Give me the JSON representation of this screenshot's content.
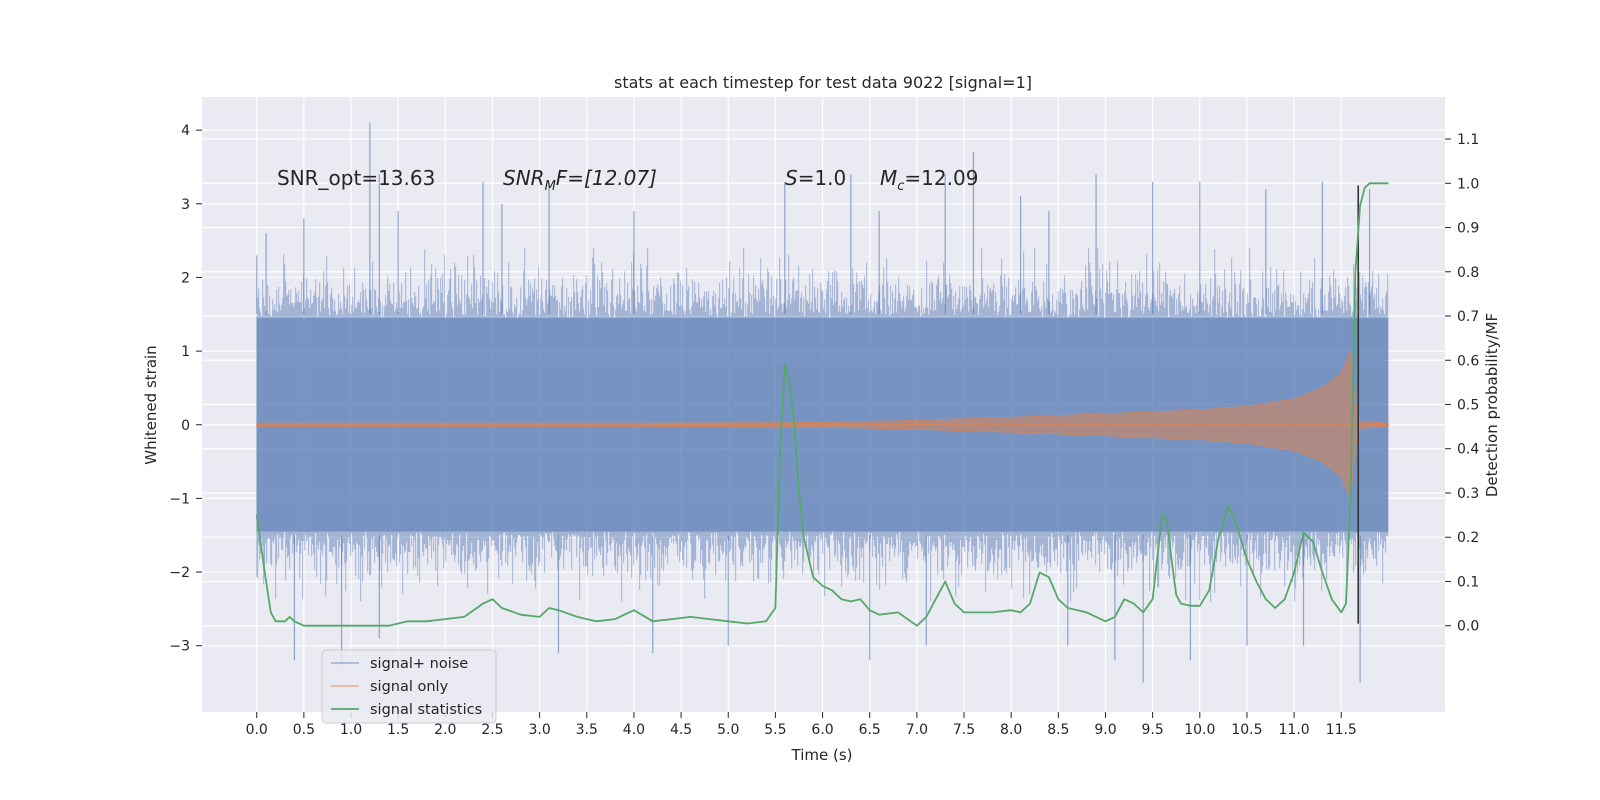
{
  "chart_data": {
    "type": "line",
    "title": "stats at each timestep for test data 9022 [signal=1]",
    "xlabel": "Time (s)",
    "ylabel_left": "Whitened strain",
    "ylabel_right": "Detection probability/MF",
    "xlim": [
      -0.58,
      12.6
    ],
    "ylim_left": [
      -3.9,
      4.45
    ],
    "ylim_right": [
      -0.195,
      1.195
    ],
    "x_ticks": [
      0.0,
      0.5,
      1.0,
      1.5,
      2.0,
      2.5,
      3.0,
      3.5,
      4.0,
      4.5,
      5.0,
      5.5,
      6.0,
      6.5,
      7.0,
      7.5,
      8.0,
      8.5,
      9.0,
      9.5,
      10.0,
      10.5,
      11.0,
      11.5
    ],
    "x_tick_labels": [
      "0.0",
      "0.5",
      "1.0",
      "1.5",
      "2.0",
      "2.5",
      "3.0",
      "3.5",
      "4.0",
      "4.5",
      "5.0",
      "5.5",
      "6.0",
      "6.5",
      "7.0",
      "7.5",
      "8.0",
      "8.5",
      "9.0",
      "9.5",
      "10.0",
      "10.5",
      "11.0",
      "11.5"
    ],
    "y_left_ticks": [
      -3,
      -2,
      -1,
      0,
      1,
      2,
      3,
      4
    ],
    "y_left_tick_labels": [
      "−3",
      "−2",
      "−1",
      "0",
      "1",
      "2",
      "3",
      "4"
    ],
    "y_right_ticks": [
      0.0,
      0.1,
      0.2,
      0.3,
      0.4,
      0.5,
      0.6,
      0.7,
      0.8,
      0.9,
      1.0,
      1.1
    ],
    "y_right_tick_labels": [
      "0.0",
      "0.1",
      "0.2",
      "0.3",
      "0.4",
      "0.5",
      "0.6",
      "0.7",
      "0.8",
      "0.9",
      "1.0",
      "1.1"
    ],
    "grid": true,
    "legend_position": "lower-left",
    "annotations": {
      "snr_opt": "SNR_opt=13.63",
      "snr_mf_sym": "SNR",
      "snr_mf_sub": "M",
      "snr_mf_rest": "F=[12.07]",
      "s_sym": "S",
      "s_rest": "=1.0",
      "mc_sym": "M",
      "mc_sub": "c",
      "mc_rest": "=12.09"
    },
    "series": [
      {
        "name": "signal+ noise",
        "axis": "left",
        "color": "#4c72b0",
        "description": "whitened noisy strain, envelope approx",
        "x": [
          0.0,
          12.0
        ],
        "upper_spikes": [
          [
            0.0,
            2.3
          ],
          [
            0.1,
            2.6
          ],
          [
            0.5,
            2.8
          ],
          [
            1.2,
            4.1
          ],
          [
            1.3,
            3.4
          ],
          [
            1.5,
            2.9
          ],
          [
            2.4,
            3.3
          ],
          [
            2.6,
            3.0
          ],
          [
            3.1,
            3.3
          ],
          [
            4.0,
            2.9
          ],
          [
            5.6,
            3.3
          ],
          [
            6.3,
            3.4
          ],
          [
            6.6,
            2.9
          ],
          [
            7.3,
            3.4
          ],
          [
            7.6,
            3.7
          ],
          [
            8.1,
            3.1
          ],
          [
            8.4,
            2.9
          ],
          [
            8.9,
            3.4
          ],
          [
            9.5,
            3.3
          ],
          [
            10.0,
            3.3
          ],
          [
            10.7,
            3.2
          ],
          [
            11.3,
            3.3
          ],
          [
            11.8,
            3.2
          ]
        ],
        "lower_spikes": [
          [
            0.4,
            -3.2
          ],
          [
            0.9,
            -3.3
          ],
          [
            1.3,
            -2.9
          ],
          [
            3.2,
            -3.1
          ],
          [
            4.2,
            -3.1
          ],
          [
            5.0,
            -3.0
          ],
          [
            6.5,
            -3.2
          ],
          [
            7.1,
            -3.0
          ],
          [
            8.6,
            -3.0
          ],
          [
            9.1,
            -3.2
          ],
          [
            9.4,
            -3.5
          ],
          [
            9.9,
            -3.2
          ],
          [
            10.5,
            -3.0
          ],
          [
            11.1,
            -3.0
          ],
          [
            11.7,
            -3.5
          ]
        ]
      },
      {
        "name": "signal only",
        "axis": "left",
        "color": "#dd8452",
        "description": "chirp waveform envelope",
        "x": [
          0.0,
          2.0,
          4.0,
          6.0,
          7.0,
          8.0,
          9.0,
          10.0,
          10.5,
          11.0,
          11.3,
          11.5,
          11.6,
          11.65,
          11.7,
          12.0
        ],
        "amplitude": [
          0.02,
          0.02,
          0.02,
          0.03,
          0.06,
          0.1,
          0.15,
          0.2,
          0.25,
          0.35,
          0.5,
          0.7,
          1.0,
          0.3,
          0.05,
          0.02
        ]
      },
      {
        "name": "signal statistics",
        "axis": "right",
        "color": "#55a868",
        "x": [
          0.0,
          0.1,
          0.15,
          0.2,
          0.25,
          0.3,
          0.35,
          0.4,
          0.5,
          0.6,
          0.8,
          1.0,
          1.2,
          1.4,
          1.6,
          1.8,
          2.0,
          2.2,
          2.4,
          2.5,
          2.6,
          2.8,
          3.0,
          3.1,
          3.2,
          3.4,
          3.6,
          3.8,
          4.0,
          4.2,
          4.4,
          4.6,
          4.8,
          5.0,
          5.2,
          5.4,
          5.5,
          5.55,
          5.6,
          5.65,
          5.7,
          5.75,
          5.8,
          5.9,
          6.0,
          6.1,
          6.2,
          6.3,
          6.4,
          6.5,
          6.6,
          6.8,
          7.0,
          7.1,
          7.2,
          7.3,
          7.4,
          7.5,
          7.6,
          7.8,
          8.0,
          8.1,
          8.2,
          8.3,
          8.4,
          8.5,
          8.6,
          8.8,
          9.0,
          9.1,
          9.2,
          9.3,
          9.4,
          9.5,
          9.6,
          9.65,
          9.7,
          9.75,
          9.8,
          9.9,
          10.0,
          10.1,
          10.2,
          10.3,
          10.35,
          10.4,
          10.5,
          10.6,
          10.7,
          10.8,
          10.9,
          11.0,
          11.1,
          11.2,
          11.3,
          11.4,
          11.5,
          11.55,
          11.6,
          11.65,
          11.7,
          11.75,
          11.8,
          11.9,
          12.0
        ],
        "values": [
          0.25,
          0.1,
          0.03,
          0.01,
          0.01,
          0.01,
          0.02,
          0.01,
          0.0,
          0.0,
          0.0,
          0.0,
          0.0,
          0.0,
          0.01,
          0.01,
          0.015,
          0.02,
          0.05,
          0.06,
          0.04,
          0.025,
          0.02,
          0.04,
          0.035,
          0.02,
          0.01,
          0.015,
          0.035,
          0.01,
          0.015,
          0.02,
          0.015,
          0.01,
          0.005,
          0.01,
          0.04,
          0.4,
          0.59,
          0.55,
          0.45,
          0.3,
          0.2,
          0.11,
          0.09,
          0.08,
          0.06,
          0.055,
          0.06,
          0.035,
          0.025,
          0.03,
          0.0,
          0.02,
          0.06,
          0.1,
          0.05,
          0.03,
          0.03,
          0.03,
          0.035,
          0.03,
          0.05,
          0.12,
          0.11,
          0.06,
          0.04,
          0.03,
          0.01,
          0.02,
          0.06,
          0.05,
          0.03,
          0.06,
          0.25,
          0.24,
          0.15,
          0.07,
          0.05,
          0.045,
          0.045,
          0.08,
          0.2,
          0.27,
          0.25,
          0.22,
          0.15,
          0.1,
          0.06,
          0.04,
          0.06,
          0.12,
          0.21,
          0.19,
          0.12,
          0.06,
          0.03,
          0.05,
          0.3,
          0.8,
          0.95,
          0.99,
          1.0,
          1.0,
          1.0
        ]
      }
    ]
  }
}
